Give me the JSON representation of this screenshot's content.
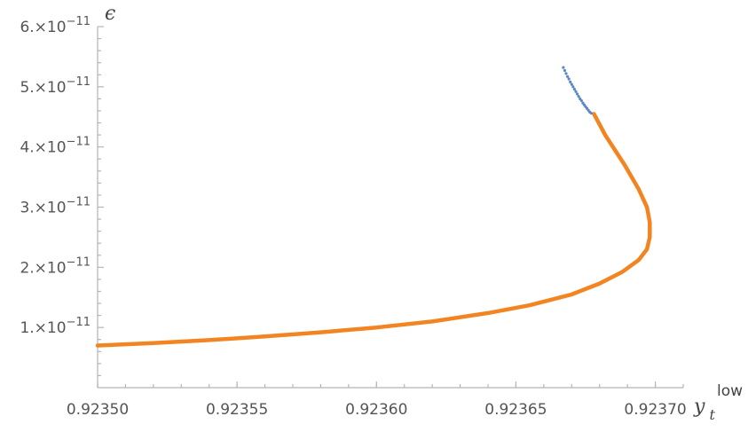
{
  "chart_data": {
    "type": "line",
    "title": "",
    "xlabel": "y_t^low",
    "ylabel": "ϵ",
    "xlabel_parts": {
      "base": "y",
      "sub": "t",
      "sup": "low"
    },
    "xlim": [
      0.9235,
      0.92371
    ],
    "ylim": [
      0.0,
      6e-11
    ],
    "grid": false,
    "x_ticks": [
      {
        "value": 0.9235,
        "label": "0.92350"
      },
      {
        "value": 0.92355,
        "label": "0.92355"
      },
      {
        "value": 0.9236,
        "label": "0.92360"
      },
      {
        "value": 0.92365,
        "label": "0.92365"
      },
      {
        "value": 0.9237,
        "label": "0.92370"
      }
    ],
    "y_ticks": [
      {
        "value": 1e-11,
        "mantissa": "1.",
        "base": "×10",
        "exp": "−11"
      },
      {
        "value": 2e-11,
        "mantissa": "2.",
        "base": "×10",
        "exp": "−11"
      },
      {
        "value": 3e-11,
        "mantissa": "3.",
        "base": "×10",
        "exp": "−11"
      },
      {
        "value": 4e-11,
        "mantissa": "4.",
        "base": "×10",
        "exp": "−11"
      },
      {
        "value": 5e-11,
        "mantissa": "5.",
        "base": "×10",
        "exp": "−11"
      },
      {
        "value": 6e-11,
        "mantissa": "6.",
        "base": "×10",
        "exp": "−11"
      }
    ],
    "series": [
      {
        "style": "line",
        "color": "#f28522",
        "x": [
          0.9235,
          0.92352,
          0.92354,
          0.92356,
          0.92358,
          0.9236,
          0.92362,
          0.92364,
          0.923655,
          0.92367,
          0.92368,
          0.923688,
          0.923694,
          0.923697,
          0.923698,
          0.923698,
          0.923697,
          0.923694,
          0.923689,
          0.923682,
          0.923678
        ],
        "y": [
          7e-12,
          7.4e-12,
          7.9e-12,
          8.5e-12,
          9.2e-12,
          1e-11,
          1.1e-11,
          1.24e-11,
          1.37e-11,
          1.55e-11,
          1.73e-11,
          1.92e-11,
          2.12e-11,
          2.3e-11,
          2.5e-11,
          2.75e-11,
          3e-11,
          3.3e-11,
          3.7e-11,
          4.2e-11,
          4.55e-11
        ]
      },
      {
        "style": "points",
        "color": "#5b87c4",
        "x": [
          0.923667,
          0.9236675,
          0.923668,
          0.9236685,
          0.923669,
          0.9236695,
          0.92367,
          0.9236705,
          0.923671,
          0.9236715,
          0.923672,
          0.9236725,
          0.923673,
          0.9236735,
          0.923674,
          0.9236745,
          0.923675,
          0.9236755,
          0.923676,
          0.9236765,
          0.923677
        ],
        "y": [
          5.32e-11,
          5.27e-11,
          5.22e-11,
          5.17e-11,
          5.13e-11,
          5.08e-11,
          5.04e-11,
          5e-11,
          4.96e-11,
          4.92e-11,
          4.88e-11,
          4.84e-11,
          4.8e-11,
          4.77e-11,
          4.73e-11,
          4.7e-11,
          4.67e-11,
          4.64e-11,
          4.61e-11,
          4.58e-11,
          4.56e-11
        ]
      }
    ]
  }
}
